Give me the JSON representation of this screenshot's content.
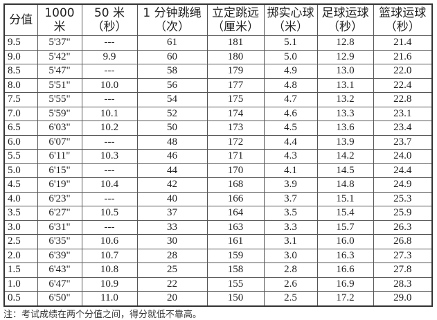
{
  "table": {
    "headers": [
      [
        "分值",
        ""
      ],
      [
        "1000 米",
        ""
      ],
      [
        "50 米",
        "（秒）"
      ],
      [
        "1 分钟跳绳",
        "（次）"
      ],
      [
        "立定跳远",
        "（厘米）"
      ],
      [
        "掷实心球",
        "（米）"
      ],
      [
        "足球运球",
        "（秒）"
      ],
      [
        "篮球运球",
        "（秒）"
      ]
    ],
    "rows": [
      [
        "9.5",
        "5'37\"",
        "---",
        "61",
        "181",
        "5.1",
        "12.8",
        "21.4"
      ],
      [
        "9.0",
        "5'42\"",
        "9.9",
        "60",
        "180",
        "5.0",
        "12.9",
        "21.6"
      ],
      [
        "8.5",
        "5'47\"",
        "---",
        "58",
        "179",
        "4.9",
        "13.0",
        "22.0"
      ],
      [
        "8.0",
        "5'51\"",
        "10.0",
        "56",
        "177",
        "4.8",
        "13.1",
        "22.4"
      ],
      [
        "7.5",
        "5'55\"",
        "---",
        "54",
        "175",
        "4.7",
        "13.2",
        "22.8"
      ],
      [
        "7.0",
        "5'59\"",
        "10.1",
        "52",
        "174",
        "4.6",
        "13.3",
        "23.1"
      ],
      [
        "6.5",
        "6'03\"",
        "10.2",
        "50",
        "173",
        "4.5",
        "13.6",
        "23.4"
      ],
      [
        "6.0",
        "6'07\"",
        "---",
        "48",
        "172",
        "4.4",
        "13.9",
        "23.7"
      ],
      [
        "5.5",
        "6'11\"",
        "10.3",
        "46",
        "171",
        "4.3",
        "14.2",
        "24.0"
      ],
      [
        "5.0",
        "6'15\"",
        "---",
        "44",
        "170",
        "4.1",
        "14.5",
        "24.4"
      ],
      [
        "4.5",
        "6'19\"",
        "10.4",
        "42",
        "168",
        "3.9",
        "14.8",
        "24.9"
      ],
      [
        "4.0",
        "6'23\"",
        "---",
        "40",
        "166",
        "3.7",
        "15.1",
        "25.3"
      ],
      [
        "3.5",
        "6'27\"",
        "10.5",
        "37",
        "164",
        "3.5",
        "15.4",
        "25.9"
      ],
      [
        "3.0",
        "6'31\"",
        "---",
        "33",
        "163",
        "3.3",
        "15.7",
        "26.3"
      ],
      [
        "2.5",
        "6'35\"",
        "10.6",
        "30",
        "161",
        "3.1",
        "16.0",
        "26.8"
      ],
      [
        "2.0",
        "6'39\"",
        "10.7",
        "28",
        "159",
        "3.0",
        "16.3",
        "27.3"
      ],
      [
        "1.5",
        "6'43\"",
        "10.8",
        "25",
        "158",
        "2.8",
        "16.6",
        "27.8"
      ],
      [
        "1.0",
        "6'47\"",
        "10.9",
        "22",
        "155",
        "2.6",
        "16.9",
        "28.3"
      ],
      [
        "0.5",
        "6'50\"",
        "11.0",
        "20",
        "150",
        "2.5",
        "17.2",
        "29.0"
      ]
    ]
  },
  "note": "注：考试成绩在两个分值之间，得分就低不靠高。"
}
